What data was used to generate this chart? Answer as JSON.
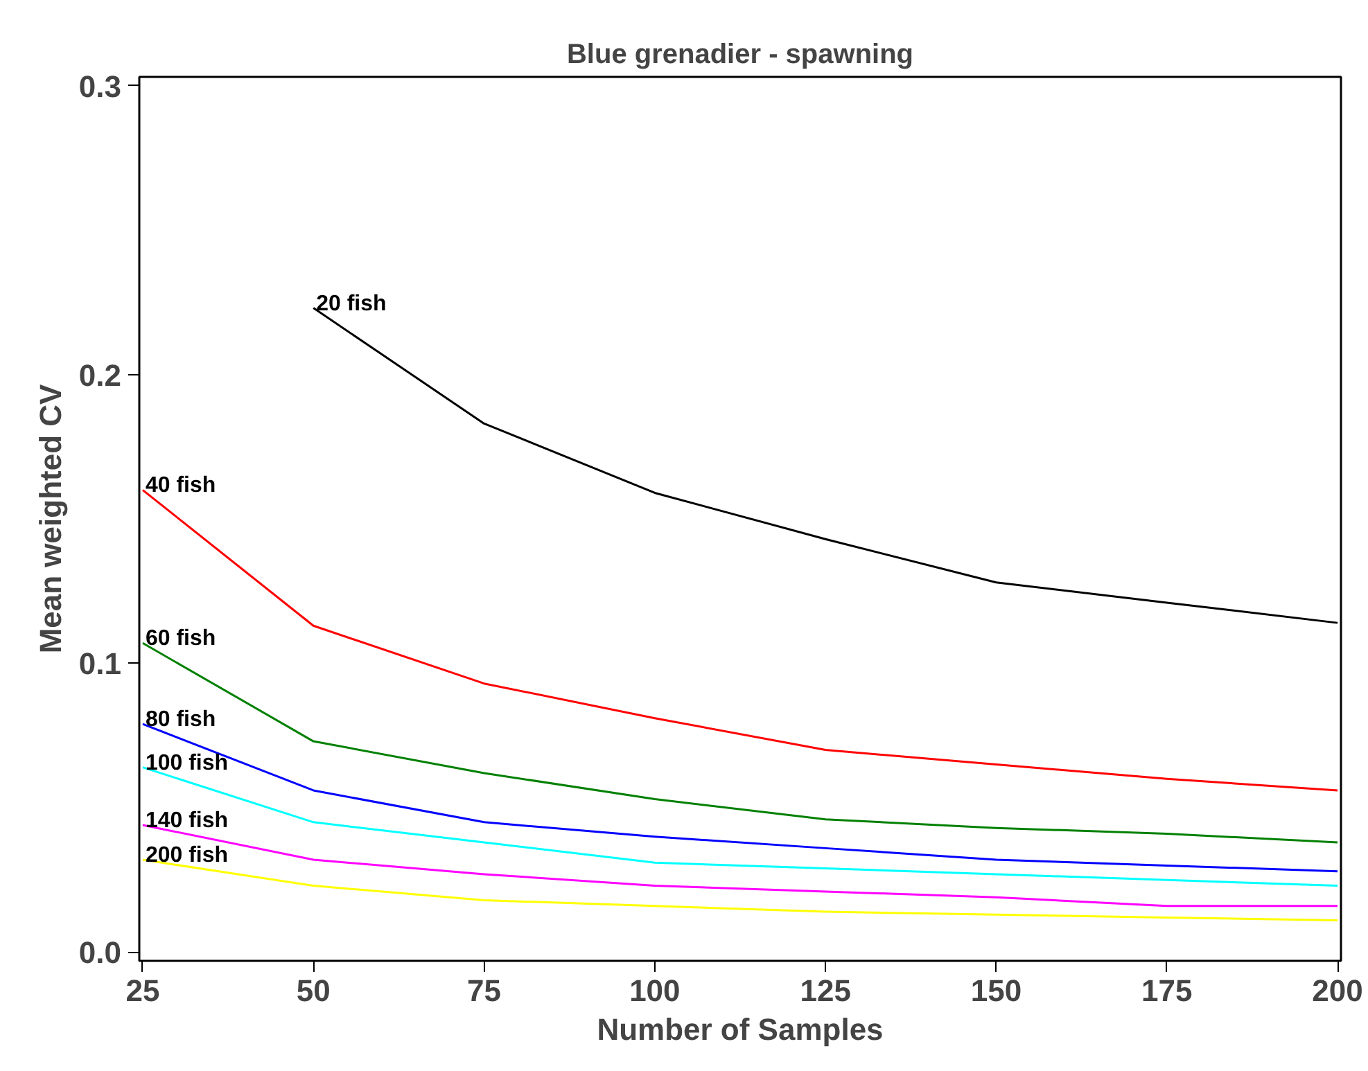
{
  "chart_data": {
    "type": "line",
    "title": "Blue grenadier - spawning",
    "xlabel": "Number of Samples",
    "ylabel": "Mean weighted CV",
    "x": [
      25,
      50,
      75,
      100,
      125,
      150,
      175,
      200
    ],
    "series": [
      {
        "name": "20 fish",
        "color": "#000000",
        "values": [
          null,
          0.223,
          0.183,
          0.159,
          0.143,
          0.128,
          0.121,
          0.114
        ]
      },
      {
        "name": "40 fish",
        "color": "#ff0000",
        "values": [
          0.16,
          0.113,
          0.093,
          0.081,
          0.07,
          0.065,
          0.06,
          0.056
        ]
      },
      {
        "name": "60 fish",
        "color": "#008000",
        "values": [
          0.107,
          0.073,
          0.062,
          0.053,
          0.046,
          0.043,
          0.041,
          0.038
        ]
      },
      {
        "name": "80 fish",
        "color": "#0000ff",
        "values": [
          0.079,
          0.056,
          0.045,
          0.04,
          0.036,
          0.032,
          0.03,
          0.028
        ]
      },
      {
        "name": "100 fish",
        "color": "#00ffff",
        "values": [
          0.064,
          0.045,
          0.038,
          0.031,
          0.029,
          0.027,
          0.025,
          0.023
        ]
      },
      {
        "name": "140 fish",
        "color": "#ff00ff",
        "values": [
          0.044,
          0.032,
          0.027,
          0.023,
          0.021,
          0.019,
          0.016,
          0.016
        ]
      },
      {
        "name": "200 fish",
        "color": "#ffff00",
        "values": [
          0.032,
          0.023,
          0.018,
          0.016,
          0.014,
          0.013,
          0.012,
          0.011
        ]
      }
    ],
    "xlim": [
      24.5,
      200.5
    ],
    "ylim": [
      -0.003,
      0.303
    ],
    "xticks": [
      25,
      50,
      75,
      100,
      125,
      150,
      175,
      200
    ],
    "yticks": [
      {
        "value": 0,
        "label": "0.0"
      },
      {
        "value": 0.1,
        "label": "0.1"
      },
      {
        "value": 0.2,
        "label": "0.2"
      },
      {
        "value": 0.3,
        "label": "0.3"
      }
    ],
    "grid": false,
    "marker": "none",
    "line_style": "solid"
  }
}
